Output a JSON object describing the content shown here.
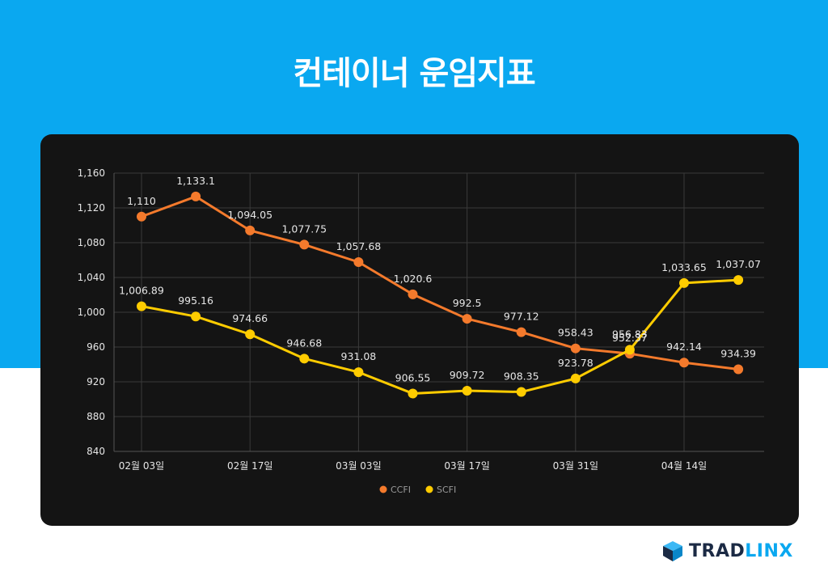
{
  "title": "컨테이너 운임지표",
  "brand": {
    "part1": "TRAD",
    "part2": "LINX"
  },
  "colors": {
    "ccfi": "#f47a2c",
    "scfi": "#ffcc00",
    "background_top": "#0aa8f0",
    "card": "#141414"
  },
  "chart_data": {
    "type": "line",
    "x_ticks": [
      "02월 03일",
      "02월 17일",
      "03월 03일",
      "03월 17일",
      "03월 31일",
      "04월 14일"
    ],
    "ylim": [
      840,
      1160
    ],
    "y_ticks": [
      840,
      880,
      920,
      960,
      1000,
      1040,
      1080,
      1120,
      1160
    ],
    "y_tick_labels": [
      "840",
      "880",
      "920",
      "960",
      "1,000",
      "1,040",
      "1,080",
      "1,120",
      "1,160"
    ],
    "grid": true,
    "legend_position": "bottom",
    "points_count": 12,
    "series": [
      {
        "name": "CCFI",
        "values": [
          1110,
          1133.1,
          1094.05,
          1077.75,
          1057.68,
          1020.6,
          992.5,
          977.12,
          958.43,
          952.37,
          942.14,
          934.39
        ],
        "labels": [
          "1,110",
          "1,133.1",
          "1,094.05",
          "1,077.75",
          "1,057.68",
          "1,020.6",
          "992.5",
          "977.12",
          "958.43",
          "952.37",
          "942.14",
          "934.39"
        ]
      },
      {
        "name": "SCFI",
        "values": [
          1006.89,
          995.16,
          974.66,
          946.68,
          931.08,
          906.55,
          909.72,
          908.35,
          923.78,
          956.83,
          1033.65,
          1037.07
        ],
        "labels": [
          "1,006.89",
          "995.16",
          "974.66",
          "946.68",
          "931.08",
          "906.55",
          "909.72",
          "908.35",
          "923.78",
          "956.83",
          "1,033.65",
          "1,037.07"
        ]
      }
    ]
  }
}
